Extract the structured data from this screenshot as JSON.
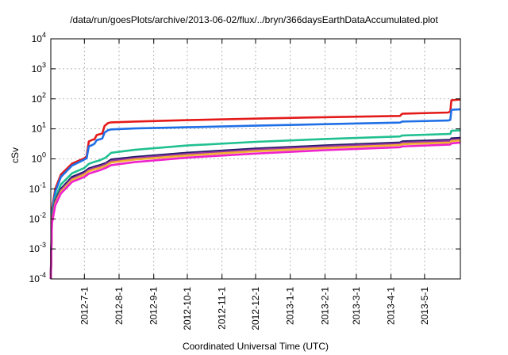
{
  "chart_data": {
    "type": "line",
    "title": "/data/run/goesPlots/archive/2013-06-02/flux/../bryn/366daysEarthDataAccumulated.plot",
    "xlabel": "Coordinated Universal Time (UTC)",
    "ylabel": "cSv",
    "yscale": "log",
    "ylim": [
      0.0001,
      10000
    ],
    "xlim": [
      "2012-06-01",
      "2013-06-02"
    ],
    "grid": true,
    "yticks": [
      {
        "base": "10",
        "exp": "-4",
        "value": 0.0001
      },
      {
        "base": "10",
        "exp": "-3",
        "value": 0.001
      },
      {
        "base": "10",
        "exp": "-2",
        "value": 0.01
      },
      {
        "base": "10",
        "exp": "-1",
        "value": 0.1
      },
      {
        "base": "10",
        "exp": "0",
        "value": 1
      },
      {
        "base": "10",
        "exp": "1",
        "value": 10
      },
      {
        "base": "10",
        "exp": "2",
        "value": 100
      },
      {
        "base": "10",
        "exp": "3",
        "value": 1000
      },
      {
        "base": "10",
        "exp": "4",
        "value": 10000
      }
    ],
    "xticks": [
      {
        "label": "2012-7-1",
        "date": "2012-07-01"
      },
      {
        "label": "2012-8-1",
        "date": "2012-08-01"
      },
      {
        "label": "2012-9-1",
        "date": "2012-09-01"
      },
      {
        "label": "2012-10-1",
        "date": "2012-10-01"
      },
      {
        "label": "2012-11-1",
        "date": "2012-11-01"
      },
      {
        "label": "2012-12-1",
        "date": "2012-12-01"
      },
      {
        "label": "2013-1-1",
        "date": "2013-01-01"
      },
      {
        "label": "2013-2-1",
        "date": "2013-02-01"
      },
      {
        "label": "2013-3-1",
        "date": "2013-03-01"
      },
      {
        "label": "2013-4-1",
        "date": "2013-04-01"
      },
      {
        "label": "2013-5-1",
        "date": "2013-05-01"
      }
    ],
    "series": [
      {
        "color": "#e41a1a",
        "points": [
          [
            "2012-06-01",
            0.0001
          ],
          [
            "2012-06-02",
            0.02
          ],
          [
            "2012-06-05",
            0.1
          ],
          [
            "2012-06-10",
            0.3
          ],
          [
            "2012-06-20",
            0.7
          ],
          [
            "2012-07-01",
            1.05
          ],
          [
            "2012-07-03",
            1.2
          ],
          [
            "2012-07-05",
            3.8
          ],
          [
            "2012-07-08",
            4.3
          ],
          [
            "2012-07-10",
            4.5
          ],
          [
            "2012-07-12",
            6.2
          ],
          [
            "2012-07-15",
            6.7
          ],
          [
            "2012-07-17",
            7.0
          ],
          [
            "2012-07-19",
            12.5
          ],
          [
            "2012-07-22",
            15.5
          ],
          [
            "2012-07-25",
            16.5
          ],
          [
            "2012-08-15",
            17.5
          ],
          [
            "2012-10-01",
            19.5
          ],
          [
            "2012-12-01",
            22.0
          ],
          [
            "2013-02-01",
            24.5
          ],
          [
            "2013-04-09",
            27.0
          ],
          [
            "2013-04-11",
            32.0
          ],
          [
            "2013-05-22",
            35.0
          ],
          [
            "2013-05-24",
            38.0
          ],
          [
            "2013-05-25",
            90.0
          ],
          [
            "2013-06-02",
            95.0
          ]
        ]
      },
      {
        "color": "#1f6fe6",
        "points": [
          [
            "2012-06-01",
            0.0001
          ],
          [
            "2012-06-02",
            0.015
          ],
          [
            "2012-06-05",
            0.08
          ],
          [
            "2012-06-10",
            0.25
          ],
          [
            "2012-06-20",
            0.6
          ],
          [
            "2012-07-01",
            0.95
          ],
          [
            "2012-07-03",
            1.05
          ],
          [
            "2012-07-05",
            2.6
          ],
          [
            "2012-07-08",
            2.9
          ],
          [
            "2012-07-10",
            3.2
          ],
          [
            "2012-07-12",
            4.2
          ],
          [
            "2012-07-15",
            4.5
          ],
          [
            "2012-07-17",
            4.8
          ],
          [
            "2012-07-19",
            7.5
          ],
          [
            "2012-07-22",
            9.0
          ],
          [
            "2012-07-25",
            9.6
          ],
          [
            "2012-08-15",
            10.3
          ],
          [
            "2012-10-01",
            11.3
          ],
          [
            "2012-12-01",
            12.8
          ],
          [
            "2013-02-01",
            14.3
          ],
          [
            "2013-04-09",
            16.2
          ],
          [
            "2013-04-11",
            17.5
          ],
          [
            "2013-05-22",
            19.0
          ],
          [
            "2013-05-24",
            20.0
          ],
          [
            "2013-05-25",
            43.0
          ],
          [
            "2013-06-02",
            45.0
          ]
        ]
      },
      {
        "color": "#20c090",
        "points": [
          [
            "2012-06-01",
            0.0001
          ],
          [
            "2012-06-02",
            0.012
          ],
          [
            "2012-06-05",
            0.05
          ],
          [
            "2012-06-10",
            0.14
          ],
          [
            "2012-06-20",
            0.33
          ],
          [
            "2012-07-01",
            0.5
          ],
          [
            "2012-07-05",
            0.68
          ],
          [
            "2012-07-10",
            0.8
          ],
          [
            "2012-07-15",
            0.9
          ],
          [
            "2012-07-20",
            1.1
          ],
          [
            "2012-07-25",
            1.6
          ],
          [
            "2012-08-15",
            2.0
          ],
          [
            "2012-10-01",
            2.8
          ],
          [
            "2012-12-01",
            3.7
          ],
          [
            "2013-02-01",
            4.6
          ],
          [
            "2013-04-09",
            5.6
          ],
          [
            "2013-04-11",
            6.0
          ],
          [
            "2013-05-24",
            6.8
          ],
          [
            "2013-05-25",
            8.6
          ],
          [
            "2013-06-02",
            9.0
          ]
        ]
      },
      {
        "color": "#221a66",
        "points": [
          [
            "2012-06-01",
            0.0001
          ],
          [
            "2012-06-02",
            0.01
          ],
          [
            "2012-06-05",
            0.04
          ],
          [
            "2012-06-10",
            0.1
          ],
          [
            "2012-06-20",
            0.25
          ],
          [
            "2012-07-01",
            0.37
          ],
          [
            "2012-07-05",
            0.48
          ],
          [
            "2012-07-10",
            0.55
          ],
          [
            "2012-07-15",
            0.62
          ],
          [
            "2012-07-20",
            0.72
          ],
          [
            "2012-07-25",
            0.95
          ],
          [
            "2012-08-15",
            1.15
          ],
          [
            "2012-10-01",
            1.6
          ],
          [
            "2012-12-01",
            2.2
          ],
          [
            "2013-02-01",
            2.8
          ],
          [
            "2013-04-09",
            3.5
          ],
          [
            "2013-04-11",
            3.8
          ],
          [
            "2013-05-24",
            4.3
          ],
          [
            "2013-05-25",
            4.8
          ],
          [
            "2013-06-02",
            5.0
          ]
        ]
      },
      {
        "color": "#9a36a8",
        "points": [
          [
            "2012-06-01",
            0.0001
          ],
          [
            "2012-06-02",
            0.009
          ],
          [
            "2012-06-05",
            0.036
          ],
          [
            "2012-06-10",
            0.09
          ],
          [
            "2012-06-20",
            0.22
          ],
          [
            "2012-07-01",
            0.33
          ],
          [
            "2012-07-05",
            0.43
          ],
          [
            "2012-07-10",
            0.5
          ],
          [
            "2012-07-15",
            0.56
          ],
          [
            "2012-07-20",
            0.66
          ],
          [
            "2012-07-25",
            0.85
          ],
          [
            "2012-08-15",
            1.05
          ],
          [
            "2012-10-01",
            1.45
          ],
          [
            "2012-12-01",
            2.0
          ],
          [
            "2013-02-01",
            2.55
          ],
          [
            "2013-04-09",
            3.2
          ],
          [
            "2013-04-11",
            3.45
          ],
          [
            "2013-05-24",
            3.9
          ],
          [
            "2013-05-25",
            4.3
          ],
          [
            "2013-06-02",
            4.5
          ]
        ]
      },
      {
        "color": "#f0b030",
        "points": [
          [
            "2012-06-01",
            0.0001
          ],
          [
            "2012-06-02",
            0.008
          ],
          [
            "2012-06-05",
            0.032
          ],
          [
            "2012-06-10",
            0.08
          ],
          [
            "2012-06-20",
            0.2
          ],
          [
            "2012-07-01",
            0.3
          ],
          [
            "2012-07-05",
            0.39
          ],
          [
            "2012-07-10",
            0.45
          ],
          [
            "2012-07-15",
            0.5
          ],
          [
            "2012-07-20",
            0.59
          ],
          [
            "2012-07-25",
            0.76
          ],
          [
            "2012-08-15",
            0.95
          ],
          [
            "2012-10-01",
            1.3
          ],
          [
            "2012-12-01",
            1.8
          ],
          [
            "2013-02-01",
            2.3
          ],
          [
            "2013-04-09",
            2.9
          ],
          [
            "2013-04-11",
            3.1
          ],
          [
            "2013-05-24",
            3.5
          ],
          [
            "2013-05-25",
            3.9
          ],
          [
            "2013-06-02",
            4.1
          ]
        ]
      },
      {
        "color": "#ee22cc",
        "points": [
          [
            "2012-06-01",
            0.0001
          ],
          [
            "2012-06-02",
            0.007
          ],
          [
            "2012-06-05",
            0.028
          ],
          [
            "2012-06-10",
            0.07
          ],
          [
            "2012-06-20",
            0.17
          ],
          [
            "2012-07-01",
            0.25
          ],
          [
            "2012-07-05",
            0.32
          ],
          [
            "2012-07-10",
            0.37
          ],
          [
            "2012-07-15",
            0.42
          ],
          [
            "2012-07-20",
            0.5
          ],
          [
            "2012-07-25",
            0.62
          ],
          [
            "2012-08-15",
            0.78
          ],
          [
            "2012-10-01",
            1.1
          ],
          [
            "2012-12-01",
            1.5
          ],
          [
            "2013-02-01",
            1.95
          ],
          [
            "2013-04-09",
            2.45
          ],
          [
            "2013-04-11",
            2.6
          ],
          [
            "2013-05-24",
            3.0
          ],
          [
            "2013-05-25",
            3.3
          ],
          [
            "2013-06-02",
            3.5
          ]
        ]
      }
    ]
  }
}
